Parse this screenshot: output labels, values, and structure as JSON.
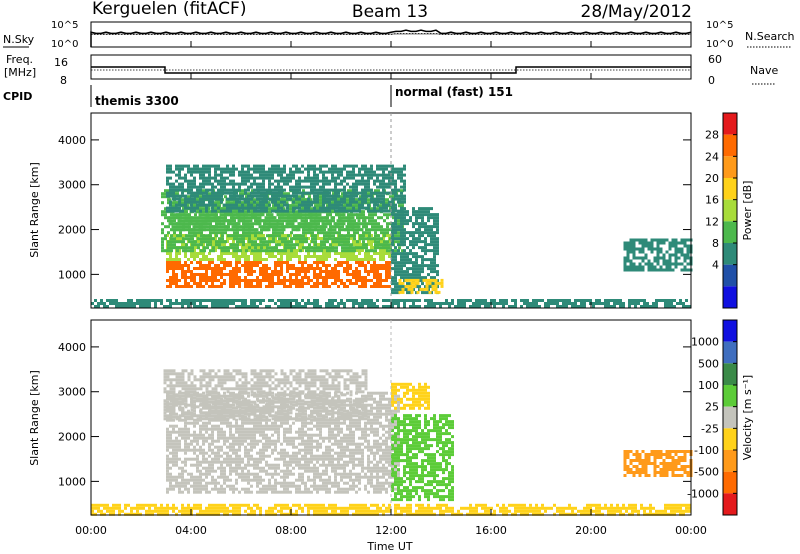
{
  "header": {
    "station": "Kerguelen (fitACF)",
    "beam": "Beam 13",
    "date": "28/May/2012"
  },
  "noise_panel": {
    "left_label": "N.Sky",
    "left_ticks": [
      "10^5",
      "10^0"
    ],
    "right_label": "N.Search",
    "right_ticks": [
      "10^5",
      "10^0"
    ]
  },
  "freq_panel": {
    "left_label_line1": "Freq.",
    "left_label_line2": "[MHz]",
    "left_ticks": [
      "16",
      "8"
    ],
    "right_label": "Nave",
    "right_ticks": [
      "60",
      "0"
    ]
  },
  "cpid": {
    "label": "CPID",
    "modes": [
      {
        "name": "themis 3300",
        "start_hour": 0
      },
      {
        "name": "normal (fast) 151",
        "start_hour": 12.0
      }
    ]
  },
  "time_axis": {
    "label": "Time UT",
    "ticks": [
      "00:00",
      "04:00",
      "08:00",
      "12:00",
      "16:00",
      "20:00",
      "00:00"
    ],
    "tick_hours": [
      0,
      4,
      8,
      12,
      16,
      20,
      24
    ]
  },
  "chart_data": [
    {
      "type": "heatmap",
      "name": "power",
      "ylabel": "Slant Range [km]",
      "yticks": [
        1000,
        2000,
        3000,
        4000
      ],
      "ylim": [
        250,
        4600
      ],
      "xlim_hours": [
        0,
        24
      ],
      "colorbar": {
        "label": "Power [dB]",
        "ticks": [
          "28",
          "24",
          "20",
          "16",
          "12",
          "8",
          "4"
        ],
        "colors": [
          "#e41a1c",
          "#ff6a00",
          "#ff9a1a",
          "#ffd21a",
          "#a8dc3a",
          "#4cb84c",
          "#2e8a78",
          "#2050a8",
          "#1010e0"
        ]
      },
      "regions": [
        {
          "t0": 3.0,
          "t1": 12.0,
          "r0": 750,
          "r1": 1900,
          "value": 27
        },
        {
          "t0": 3.0,
          "t1": 12.0,
          "r0": 1300,
          "r1": 1900,
          "value": 17
        },
        {
          "t0": 2.8,
          "t1": 12.4,
          "r0": 1500,
          "r1": 2900,
          "value": 13
        },
        {
          "t0": 3.1,
          "t1": 11.0,
          "r0": 2000,
          "r1": 2700,
          "value": 11
        },
        {
          "t0": 3.0,
          "t1": 12.5,
          "r0": 2400,
          "r1": 3450,
          "value": 7
        },
        {
          "t0": 12.0,
          "t1": 13.8,
          "r0": 600,
          "r1": 2500,
          "value": 8
        },
        {
          "t0": 12.3,
          "t1": 14.2,
          "r0": 600,
          "r1": 900,
          "value": 20
        },
        {
          "t0": 21.3,
          "t1": 24.0,
          "r0": 1100,
          "r1": 1800,
          "value": 7
        },
        {
          "t0": 0.0,
          "t1": 24.0,
          "r0": 280,
          "r1": 450,
          "value": 8
        }
      ]
    },
    {
      "type": "heatmap",
      "name": "velocity",
      "ylabel": "Slant Range [km]",
      "yticks": [
        1000,
        2000,
        3000,
        4000
      ],
      "ylim": [
        250,
        4600
      ],
      "xlim_hours": [
        0,
        24
      ],
      "colorbar": {
        "label": "Velocity [m s⁻¹]",
        "ticks": [
          "1000",
          "500",
          "100",
          "25",
          "-25",
          "-100",
          "-500",
          "-1000"
        ],
        "colors": [
          "#1010e0",
          "#3f6ebf",
          "#3a8a48",
          "#5ccc38",
          "#c4c4bc",
          "#ffd21a",
          "#ff9a1a",
          "#ff6a00",
          "#e41a1c"
        ]
      },
      "regions": [
        {
          "t0": 3.0,
          "t1": 12.3,
          "r0": 750,
          "r1": 3000,
          "value": 0
        },
        {
          "t0": 2.9,
          "t1": 11.0,
          "r0": 2400,
          "r1": 3500,
          "value": 0
        },
        {
          "t0": 12.0,
          "t1": 14.5,
          "r0": 600,
          "r1": 2500,
          "value": 60
        },
        {
          "t0": 12.0,
          "t1": 13.5,
          "r0": 2600,
          "r1": 3200,
          "value": -80
        },
        {
          "t0": 21.3,
          "t1": 24.0,
          "r0": 1100,
          "r1": 1700,
          "value": -300
        },
        {
          "t0": 0.0,
          "t1": 24.0,
          "r0": 280,
          "r1": 500,
          "value": -60
        }
      ]
    }
  ]
}
